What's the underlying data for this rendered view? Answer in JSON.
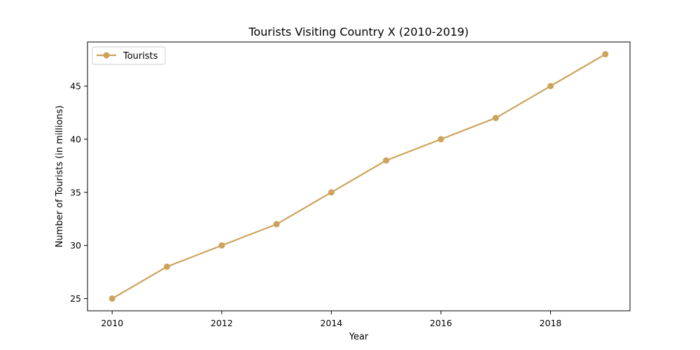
{
  "chart_data": {
    "type": "line",
    "title": "Tourists Visiting Country X (2010-2019)",
    "xlabel": "Year",
    "ylabel": "Number of Tourists (in millions)",
    "x": [
      2010,
      2011,
      2012,
      2013,
      2014,
      2015,
      2016,
      2017,
      2018,
      2019
    ],
    "series": [
      {
        "name": "Tourists",
        "values": [
          25,
          28,
          30,
          32,
          35,
          38,
          40,
          42,
          45,
          48
        ]
      }
    ],
    "xlim": [
      2009.55,
      2019.45
    ],
    "ylim": [
      23.85,
      49.15
    ],
    "xticks": [
      2010,
      2012,
      2014,
      2016,
      2018
    ],
    "yticks": [
      25,
      30,
      35,
      40,
      45
    ],
    "xtick_labels": [
      "2010",
      "2012",
      "2014",
      "2016",
      "2018"
    ],
    "ytick_labels": [
      "25",
      "30",
      "35",
      "40",
      "45"
    ],
    "legend_placement": "top-left",
    "grid": false,
    "colors": {
      "line": "#cca35a"
    }
  }
}
